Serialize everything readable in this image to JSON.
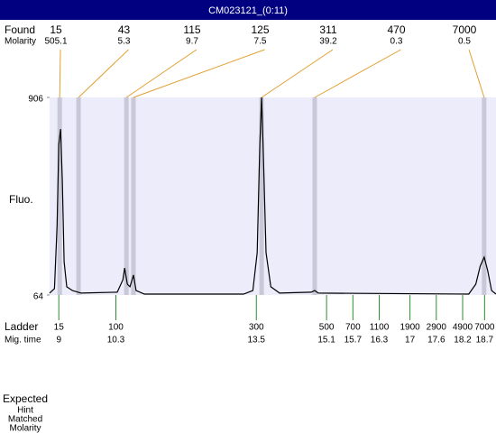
{
  "chart_data": {
    "type": "line",
    "title": "CM023121_(0:11)",
    "ylabel": "Fluo.",
    "x": [
      8.79,
      8.9,
      8.96,
      9.0,
      9.04,
      9.08,
      9.12,
      9.18,
      9.31,
      9.51,
      10.33,
      10.46,
      10.5,
      10.56,
      10.62,
      10.7,
      10.76,
      10.95,
      13.21,
      13.42,
      13.52,
      13.58,
      13.62,
      13.66,
      13.72,
      13.83,
      14.03,
      14.75,
      14.83,
      14.91,
      18.34,
      18.5,
      18.6,
      18.69,
      18.77,
      18.86,
      18.96
    ],
    "values": [
      72,
      91,
      360,
      706,
      771,
      552,
      206,
      99,
      83,
      72,
      76,
      129,
      179,
      110,
      99,
      149,
      83,
      68,
      68,
      83,
      245,
      706,
      906,
      667,
      245,
      99,
      72,
      76,
      83,
      72,
      68,
      110,
      187,
      225,
      168,
      83,
      68
    ],
    "color": "#000000",
    "xlim": [
      8.79,
      18.96
    ],
    "ylim": [
      64,
      906
    ],
    "yticks": [
      906,
      64
    ],
    "found": {
      "label": "Found",
      "molarity_label": "Molarity",
      "sizes": [
        15,
        43,
        115,
        125,
        311,
        470,
        7000
      ],
      "molarities": [
        505.1,
        5.3,
        9.7,
        7.5,
        39.2,
        0.3,
        0.5
      ],
      "times": [
        9.02,
        9.45,
        10.54,
        10.7,
        13.62,
        14.83,
        18.69
      ]
    },
    "ladder": {
      "label": "Ladder",
      "time_label": "Mig. time",
      "sizes": [
        15,
        100,
        300,
        500,
        700,
        1100,
        1900,
        2900,
        4900,
        7000
      ],
      "times": [
        9,
        10.3,
        13.5,
        15.1,
        15.7,
        16.3,
        17,
        17.6,
        18.2,
        18.7
      ]
    },
    "footer": [
      "Expected",
      "Hint",
      "Matched",
      "Molarity"
    ]
  }
}
